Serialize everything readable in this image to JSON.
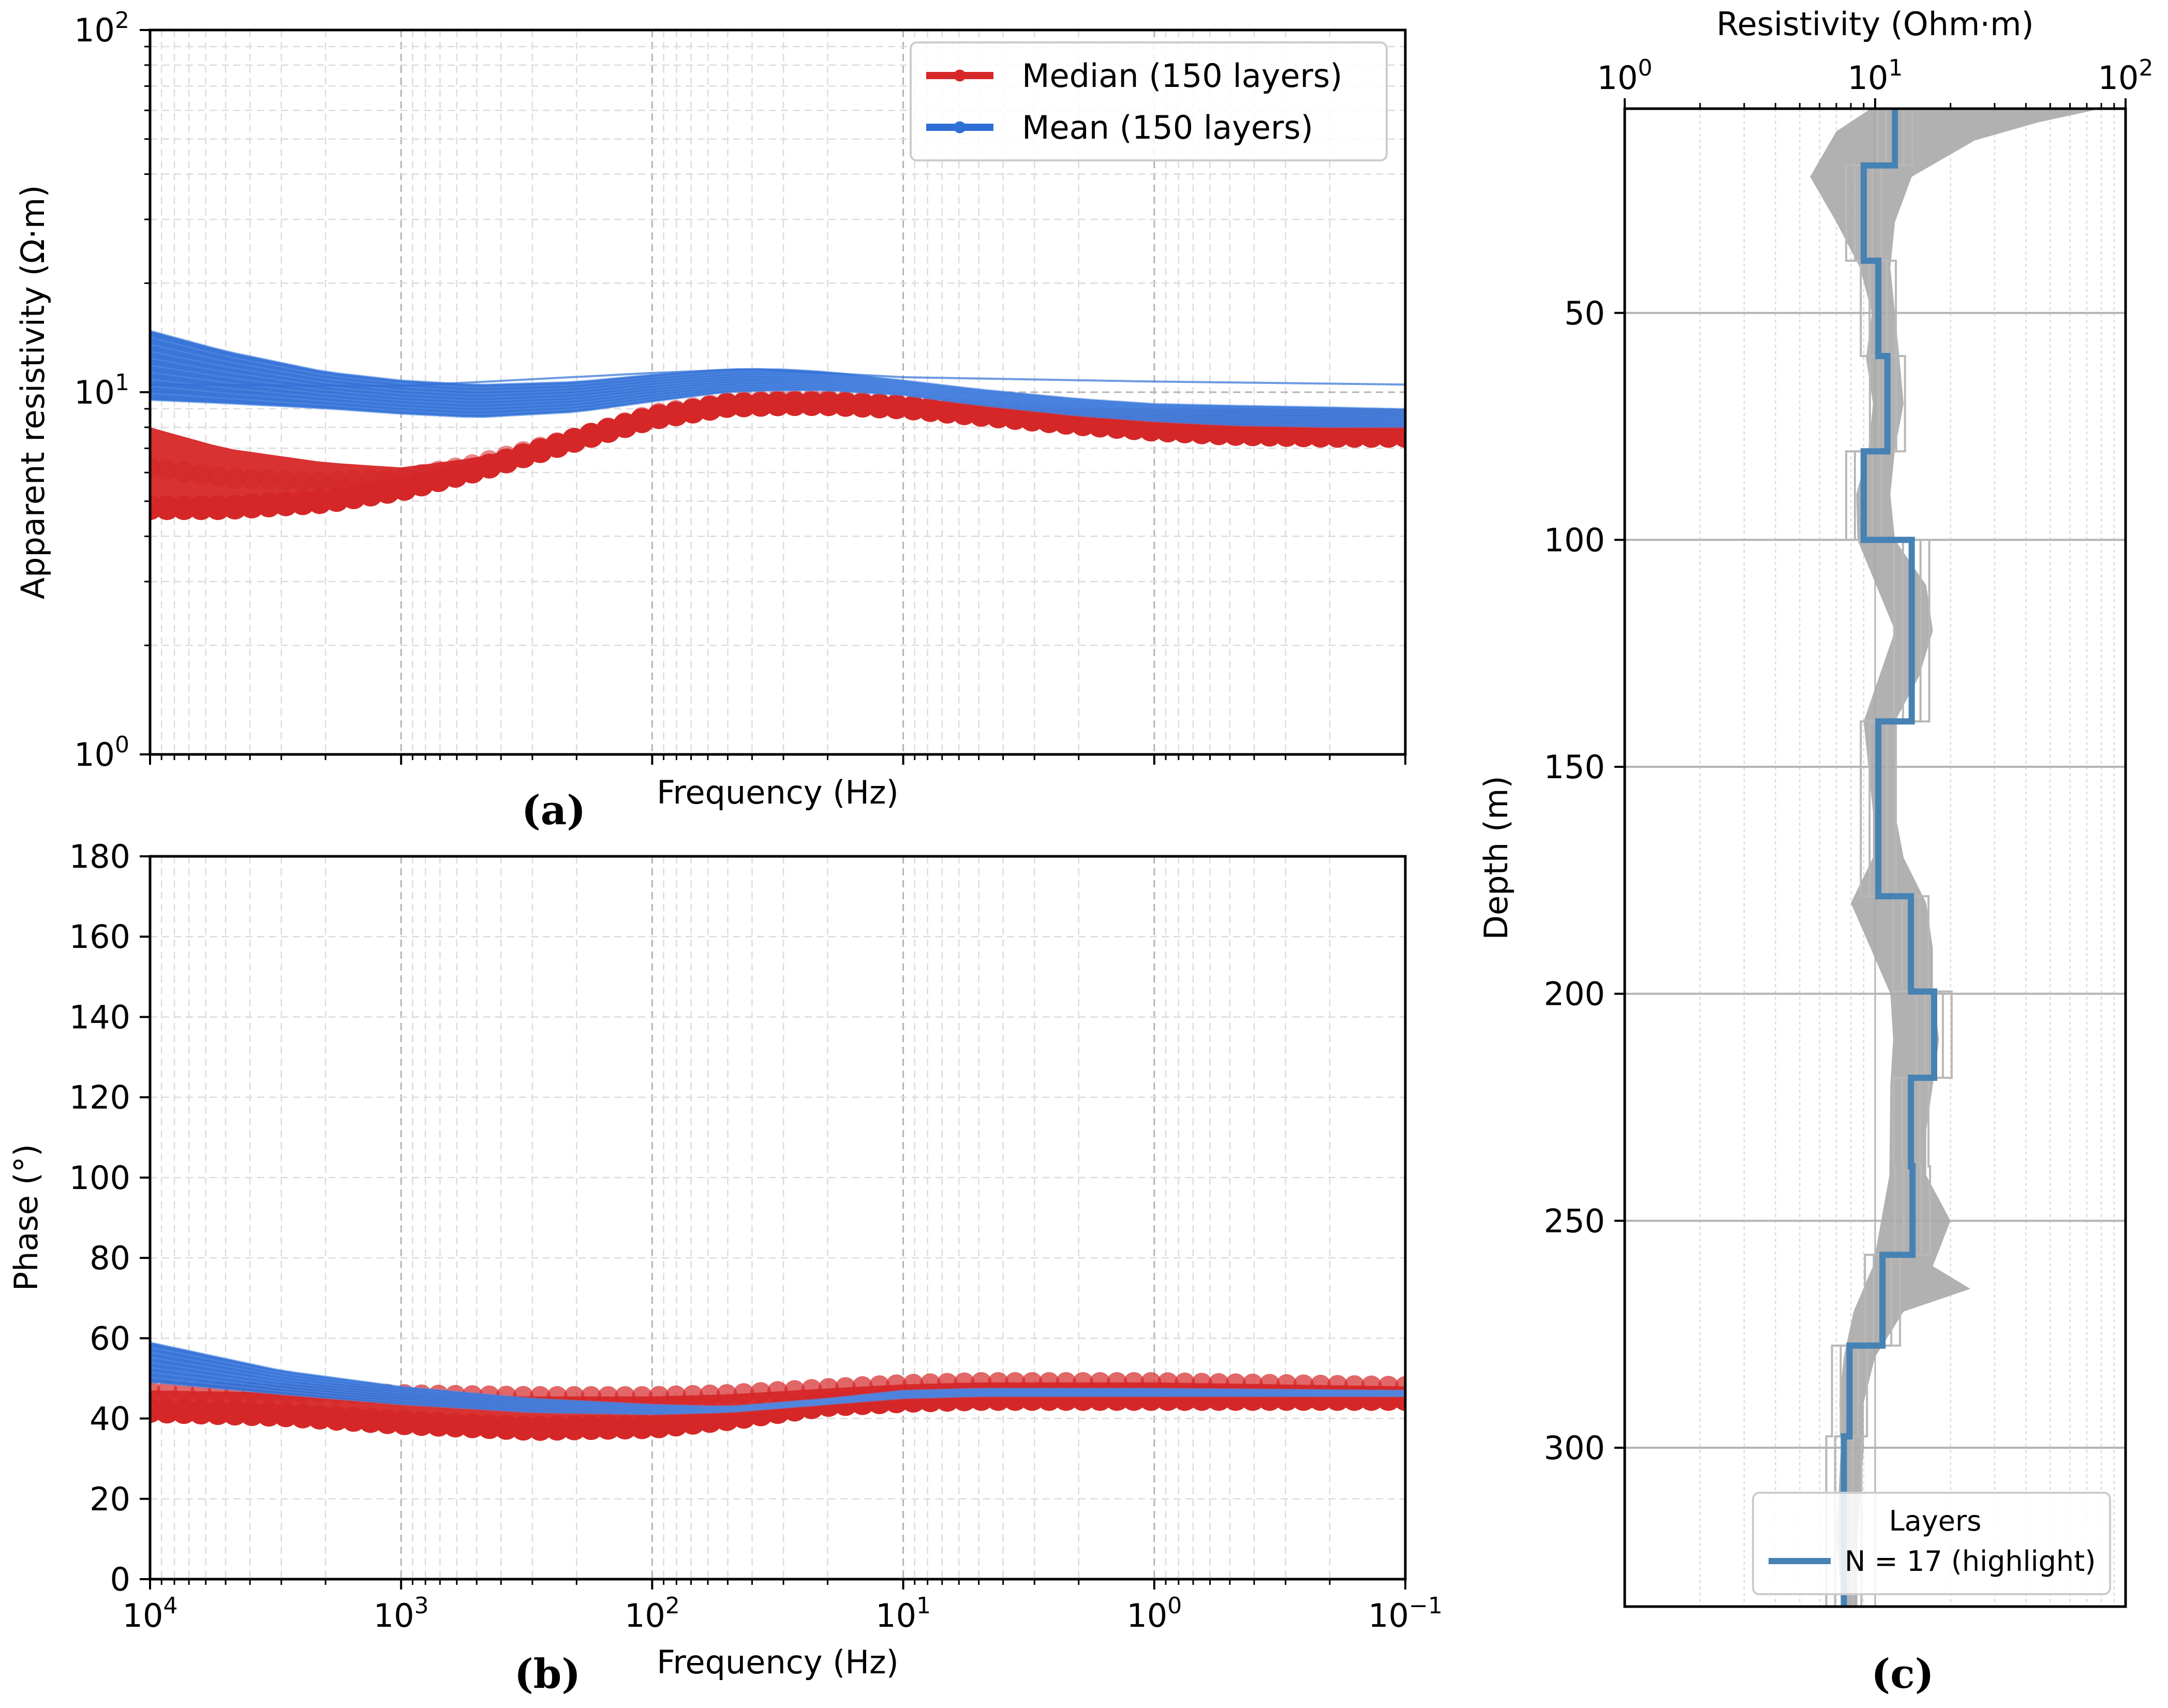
{
  "colors": {
    "median": "#d62728",
    "mean": "#2f6fd6",
    "gray": "#a8a8a8",
    "highlight": "#4682b4",
    "grid_minor": "#dcdcdc",
    "grid_major": "#b4b4b4"
  },
  "chart_data": [
    {
      "id": "a",
      "type": "line",
      "panel_label": "(a)",
      "title": "",
      "xlabel": "Frequency (Hz)",
      "ylabel": "Apparent resistivity (Ω·m)",
      "xscale": "log",
      "yscale": "log",
      "xlim": [
        10000,
        0.1
      ],
      "ylim": [
        1,
        100
      ],
      "xtick_labels": [],
      "ytick_labels": [
        {
          "value": 1,
          "base": "10",
          "exp": "0"
        },
        {
          "value": 10,
          "base": "10",
          "exp": "1"
        },
        {
          "value": 100,
          "base": "10",
          "exp": "2"
        }
      ],
      "grid": true,
      "legend": {
        "placement": "top-right",
        "entries": [
          {
            "label": "Median (150 layers)",
            "color": "#d62728"
          },
          {
            "label": "Mean (150 layers)",
            "color": "#2f6fd6"
          }
        ]
      },
      "series": [
        {
          "name": "Median (150 layers) – lower envelope",
          "x": [
            10000,
            5000,
            2000,
            1000,
            500,
            200,
            100,
            50,
            30,
            20,
            10,
            5,
            2,
            1,
            0.5,
            0.2,
            0.1
          ],
          "y": [
            4.8,
            4.8,
            5.0,
            5.4,
            6.1,
            7.4,
            8.5,
            9.2,
            9.3,
            9.3,
            9.1,
            8.7,
            8.2,
            7.9,
            7.7,
            7.6,
            7.6
          ]
        },
        {
          "name": "Median (150 layers) – upper envelope",
          "x": [
            10000,
            5000,
            2000,
            1000,
            500,
            200,
            100,
            50,
            30,
            20,
            10,
            5,
            2,
            1,
            0.5,
            0.2,
            0.1
          ],
          "y": [
            8.0,
            7.0,
            6.4,
            6.2,
            6.6,
            7.6,
            8.9,
            9.6,
            9.8,
            9.8,
            9.5,
            9.2,
            9.0,
            9.0,
            9.0,
            9.0,
            9.0
          ]
        },
        {
          "name": "Mean (150 layers) – upper envelope",
          "x": [
            10000,
            5000,
            2000,
            1000,
            500,
            200,
            100,
            50,
            30,
            20,
            10,
            5,
            2,
            1,
            0.5,
            0.2,
            0.1
          ],
          "y": [
            14.8,
            13.0,
            11.4,
            10.8,
            10.5,
            10.7,
            11.2,
            11.6,
            11.6,
            11.4,
            10.8,
            10.2,
            9.6,
            9.3,
            9.2,
            9.1,
            9.0
          ]
        },
        {
          "name": "Mean (150 layers) – lower envelope",
          "x": [
            10000,
            5000,
            2000,
            1000,
            500,
            200,
            100,
            50,
            30,
            20,
            10,
            5,
            2,
            1,
            0.5,
            0.2,
            0.1
          ],
          "y": [
            9.5,
            9.3,
            9.0,
            8.7,
            8.5,
            8.8,
            9.4,
            10.0,
            10.1,
            10.1,
            9.8,
            9.2,
            8.6,
            8.3,
            8.1,
            8.0,
            8.0
          ]
        },
        {
          "name": "Mean outlier curve",
          "x": [
            10000,
            1000,
            100,
            40,
            10,
            1,
            0.1
          ],
          "y": [
            10.5,
            10.4,
            11.3,
            11.6,
            11.0,
            10.7,
            10.5
          ]
        }
      ]
    },
    {
      "id": "b",
      "type": "line",
      "panel_label": "(b)",
      "title": "",
      "xlabel": "Frequency (Hz)",
      "ylabel": "Phase (°)",
      "xscale": "log",
      "yscale": "linear",
      "xlim": [
        10000,
        0.1
      ],
      "ylim": [
        0,
        180
      ],
      "xtick_labels": [
        {
          "value": 10000,
          "base": "10",
          "exp": "4"
        },
        {
          "value": 1000,
          "base": "10",
          "exp": "3"
        },
        {
          "value": 100,
          "base": "10",
          "exp": "2"
        },
        {
          "value": 10,
          "base": "10",
          "exp": "1"
        },
        {
          "value": 1,
          "base": "10",
          "exp": "0"
        },
        {
          "value": 0.1,
          "base": "10",
          "exp": "−1"
        }
      ],
      "ytick_labels": [
        "0",
        "20",
        "40",
        "60",
        "80",
        "100",
        "120",
        "140",
        "160",
        "180"
      ],
      "grid": true,
      "series": [
        {
          "name": "Median (150 layers) – lower envelope",
          "x": [
            10000,
            3000,
            1000,
            300,
            100,
            50,
            20,
            10,
            5,
            1,
            0.1
          ],
          "y": [
            42,
            41,
            39,
            37.5,
            38,
            40,
            43.5,
            44.5,
            45,
            45,
            45
          ]
        },
        {
          "name": "Median (150 layers) – upper envelope",
          "x": [
            10000,
            3000,
            1000,
            300,
            100,
            50,
            20,
            10,
            5,
            1,
            0.1
          ],
          "y": [
            47,
            46.5,
            46,
            45.5,
            45.5,
            46,
            47.5,
            48.5,
            49,
            49,
            48
          ]
        },
        {
          "name": "Mean (150 layers) – upper envelope",
          "x": [
            10000,
            3000,
            1000,
            300,
            100,
            50,
            20,
            10,
            5,
            1,
            0.1
          ],
          "y": [
            59,
            52,
            48,
            45,
            43.5,
            43,
            45,
            47,
            47.5,
            47.5,
            47
          ]
        },
        {
          "name": "Mean (150 layers) – lower envelope",
          "x": [
            10000,
            3000,
            1000,
            300,
            100,
            50,
            20,
            10,
            5,
            1,
            0.1
          ],
          "y": [
            49,
            46,
            43.5,
            41.5,
            41,
            41.5,
            43.5,
            45,
            45.5,
            45.5,
            45.5
          ]
        }
      ]
    },
    {
      "id": "c",
      "type": "line",
      "panel_label": "(c)",
      "title": "",
      "xlabel": "Resistivity (Ohm·m)",
      "xlabel_position": "top",
      "ylabel": "Depth (m)",
      "xscale": "log",
      "yscale": "linear",
      "yinverted": true,
      "xlim": [
        1,
        100
      ],
      "ylim": [
        5,
        335
      ],
      "xtick_labels": [
        {
          "value": 1,
          "base": "10",
          "exp": "0"
        },
        {
          "value": 10,
          "base": "10",
          "exp": "1"
        },
        {
          "value": 100,
          "base": "10",
          "exp": "2"
        }
      ],
      "ytick_labels": [
        "50",
        "100",
        "150",
        "200",
        "250",
        "300"
      ],
      "grid": true,
      "legend": {
        "placement": "lower-right",
        "title": "Layers",
        "entries": [
          {
            "label": "N = 17 (highlight)",
            "color": "#4682b4"
          }
        ]
      },
      "series": [
        {
          "name": "Ensemble – left envelope",
          "depth": [
            5,
            10,
            20,
            30,
            40,
            50,
            60,
            70,
            80,
            90,
            100,
            120,
            140,
            160,
            170,
            180,
            190,
            200,
            210,
            220,
            240,
            260,
            270,
            280,
            290,
            300,
            320,
            335
          ],
          "resistivity": [
            9.6,
            7.0,
            5.5,
            7.0,
            8.7,
            9.7,
            9.2,
            9.8,
            9.4,
            8.4,
            8.5,
            12.0,
            9.0,
            9.8,
            9.8,
            8.0,
            9.6,
            11.5,
            11.8,
            11.5,
            11.4,
            9.8,
            8.2,
            7.5,
            7.2,
            7.3,
            7.0,
            7.4
          ]
        },
        {
          "name": "Ensemble – right envelope",
          "depth": [
            5,
            8,
            12,
            20,
            30,
            40,
            50,
            60,
            70,
            80,
            90,
            100,
            110,
            120,
            130,
            140,
            160,
            170,
            180,
            190,
            200,
            210,
            220,
            230,
            240,
            250,
            260,
            265,
            270,
            280,
            290,
            300,
            320,
            335
          ],
          "resistivity": [
            80,
            45,
            25,
            14,
            12,
            11.5,
            12,
            12.5,
            13,
            12,
            11.5,
            12,
            16,
            17,
            15,
            12,
            12,
            13,
            16,
            17,
            17,
            18,
            17,
            16,
            16,
            20,
            17,
            24,
            13,
            10,
            9,
            9,
            8.5,
            8.5
          ]
        },
        {
          "name": "N = 17 (highlight)",
          "depth": [
            5,
            17.5,
            17.5,
            38.5,
            38.5,
            59.5,
            59.5,
            80.5,
            80.5,
            100,
            100,
            140,
            140,
            178.5,
            178.5,
            199.5,
            199.5,
            218.5,
            218.5,
            238,
            238,
            257.5,
            257.5,
            277.5,
            277.5,
            297.5,
            297.5,
            335
          ],
          "resistivity": [
            12.0,
            12.0,
            9.0,
            9.0,
            10.3,
            10.3,
            11.2,
            11.2,
            9.0,
            9.0,
            14.0,
            14.0,
            10.3,
            10.3,
            13.9,
            13.9,
            17.2,
            17.2,
            13.9,
            13.9,
            14.1,
            14.1,
            10.7,
            10.7,
            7.9,
            7.9,
            7.5,
            7.5
          ]
        }
      ]
    }
  ]
}
